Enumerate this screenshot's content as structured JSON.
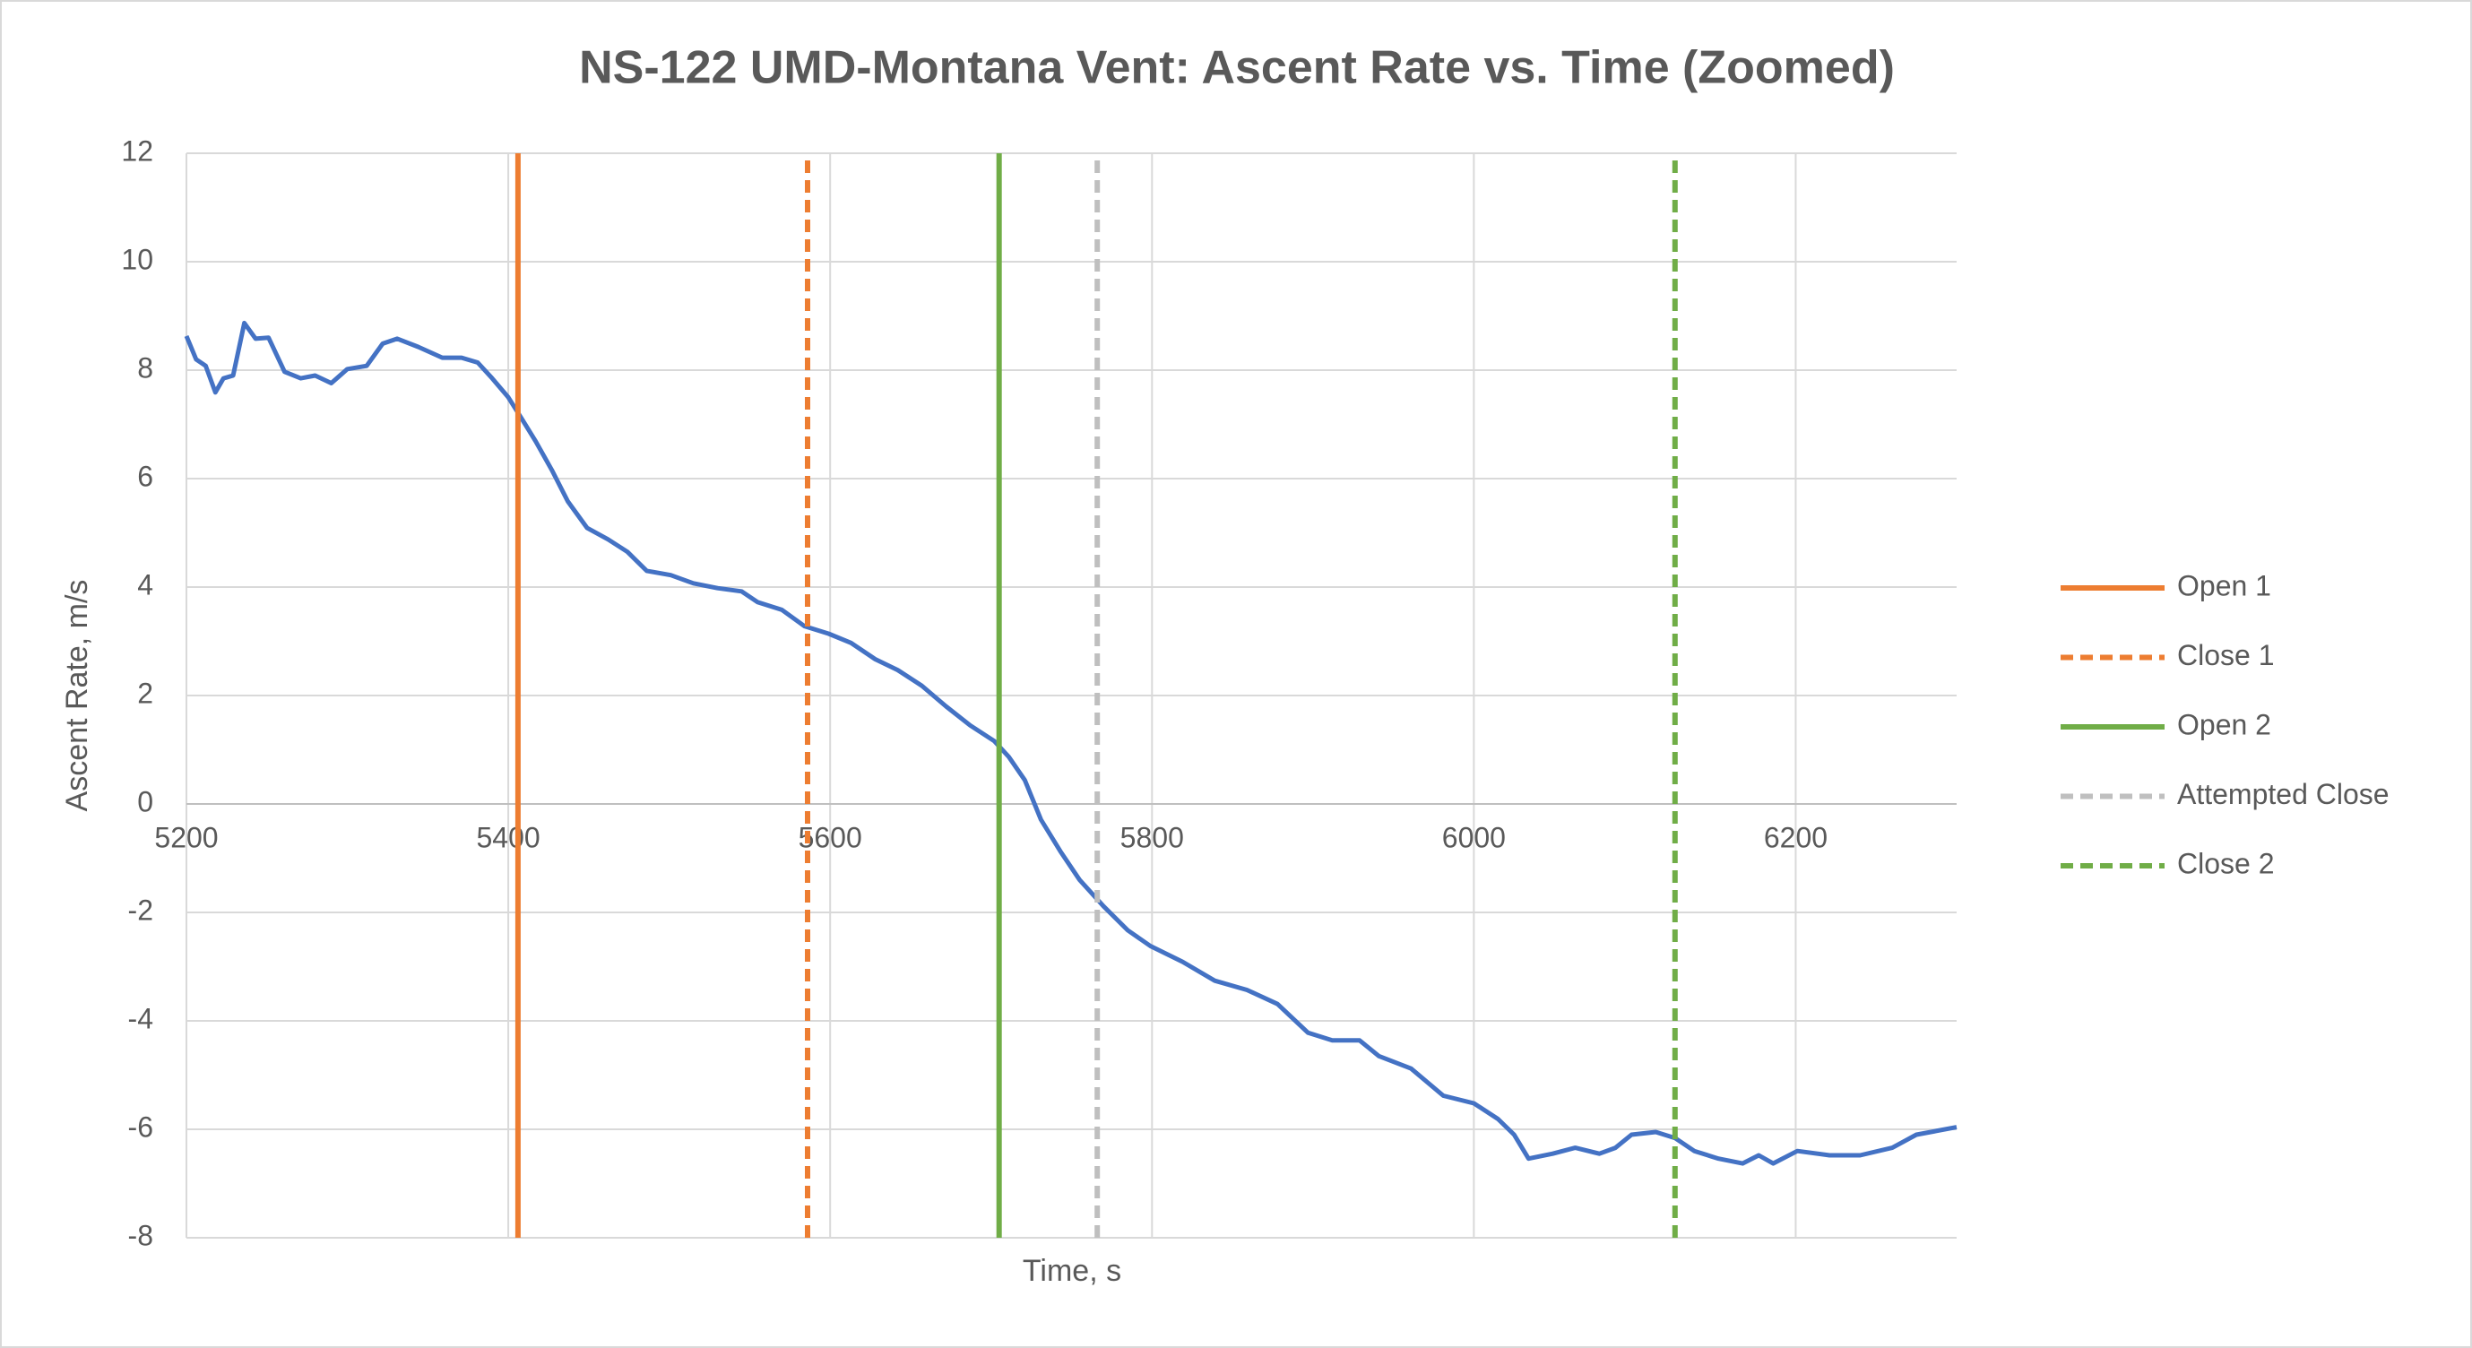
{
  "chart_data": {
    "type": "line",
    "title": "NS-122 UMD-Montana Vent: Ascent Rate vs. Time (Zoomed)",
    "x_label": "Time, s",
    "y_label": "Ascent Rate, m/s",
    "xlim": [
      5200,
      6300
    ],
    "xticks": [
      5200,
      5400,
      5600,
      5800,
      6000,
      6200
    ],
    "ylim": [
      -8,
      12
    ],
    "yticks": [
      -8,
      -6,
      -4,
      -2,
      0,
      2,
      4,
      6,
      8,
      10,
      12
    ],
    "grid": true,
    "legend": "right",
    "series": [
      {
        "color": "#4472c4",
        "style": "solid",
        "x": [
          5200,
          5206,
          5212,
          5218,
          5223,
          5229,
          5236,
          5243,
          5251,
          5261,
          5271,
          5280,
          5290,
          5300,
          5312,
          5322,
          5331,
          5344,
          5359,
          5371,
          5381,
          5390,
          5400,
          5408,
          5417,
          5427,
          5437,
          5449,
          5462,
          5474,
          5486,
          5501,
          5515,
          5530,
          5545,
          5555,
          5570,
          5584,
          5599,
          5613,
          5628,
          5642,
          5657,
          5672,
          5687,
          5702,
          5711,
          5721,
          5731,
          5743,
          5755,
          5770,
          5785,
          5799,
          5819,
          5839,
          5859,
          5878,
          5897,
          5912,
          5929,
          5941,
          5961,
          5981,
          6000,
          6015,
          6025,
          6034,
          6049,
          6063,
          6078,
          6088,
          6098,
          6113,
          6125,
          6137,
          6152,
          6167,
          6177,
          6186,
          6201,
          6221,
          6240,
          6260,
          6275,
          6300
        ],
        "values": [
          8.63,
          8.2,
          8.08,
          7.59,
          7.85,
          7.9,
          8.87,
          8.58,
          8.6,
          7.97,
          7.85,
          7.9,
          7.76,
          8.02,
          8.08,
          8.49,
          8.58,
          8.43,
          8.23,
          8.23,
          8.14,
          7.85,
          7.5,
          7.12,
          6.69,
          6.16,
          5.58,
          5.09,
          4.88,
          4.65,
          4.3,
          4.22,
          4.07,
          3.98,
          3.92,
          3.72,
          3.58,
          3.28,
          3.14,
          2.97,
          2.67,
          2.47,
          2.18,
          1.8,
          1.45,
          1.16,
          0.87,
          0.44,
          -0.29,
          -0.87,
          -1.4,
          -1.89,
          -2.33,
          -2.62,
          -2.91,
          -3.26,
          -3.43,
          -3.69,
          -4.22,
          -4.36,
          -4.36,
          -4.65,
          -4.88,
          -5.38,
          -5.52,
          -5.81,
          -6.1,
          -6.54,
          -6.45,
          -6.34,
          -6.45,
          -6.34,
          -6.1,
          -6.05,
          -6.16,
          -6.4,
          -6.54,
          -6.63,
          -6.48,
          -6.63,
          -6.4,
          -6.48,
          -6.48,
          -6.34,
          -6.1,
          -5.96
        ]
      },
      {
        "name": "Open 1",
        "color": "#ed7d31",
        "style": "solid",
        "x": [
          5406,
          5406
        ],
        "values": [
          -8,
          12
        ]
      },
      {
        "name": "Close 1",
        "color": "#ed7d31",
        "style": "dashed",
        "x": [
          5586,
          5586
        ],
        "values": [
          -8,
          12
        ]
      },
      {
        "name": "Open 2",
        "color": "#70ad47",
        "style": "solid",
        "x": [
          5705,
          5705
        ],
        "values": [
          -8,
          12
        ]
      },
      {
        "name": "Attempted Close",
        "color": "#bfbfbf",
        "style": "dashed",
        "x": [
          5766,
          5766
        ],
        "values": [
          -8,
          12
        ]
      },
      {
        "name": "Close 2",
        "color": "#70ad47",
        "style": "dashed",
        "x": [
          6125,
          6125
        ],
        "values": [
          -8,
          12
        ]
      }
    ]
  }
}
